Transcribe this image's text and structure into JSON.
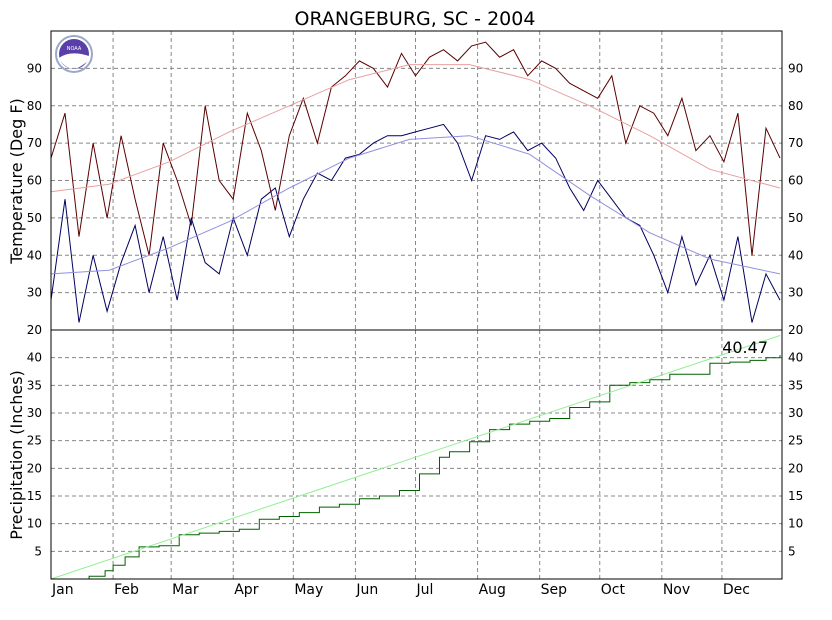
{
  "chart_data": [
    {
      "type": "line",
      "title": "ORANGEBURG, SC - 2004",
      "ylabel": "Temperature (Deg F)",
      "ylim": [
        20,
        100
      ],
      "yticks": [
        20,
        30,
        40,
        50,
        60,
        70,
        80,
        90
      ],
      "grid": true,
      "x_months": [
        "Jan",
        "Feb",
        "Mar",
        "Apr",
        "May",
        "Jun",
        "Jul",
        "Aug",
        "Sep",
        "Oct",
        "Nov",
        "Dec"
      ],
      "series": [
        {
          "role": "daily-max",
          "color": "#5a0000",
          "x_day": [
            1,
            8,
            15,
            22,
            29,
            36,
            43,
            50,
            57,
            64,
            71,
            78,
            85,
            92,
            99,
            106,
            113,
            120,
            127,
            134,
            141,
            148,
            155,
            162,
            169,
            176,
            183,
            190,
            197,
            204,
            211,
            218,
            225,
            232,
            239,
            246,
            253,
            260,
            267,
            274,
            281,
            288,
            295,
            302,
            309,
            316,
            323,
            330,
            337,
            344,
            351,
            358,
            365
          ],
          "values": [
            66,
            78,
            45,
            70,
            50,
            72,
            55,
            40,
            70,
            60,
            48,
            80,
            60,
            55,
            78,
            68,
            52,
            72,
            82,
            70,
            85,
            88,
            92,
            90,
            85,
            94,
            88,
            93,
            95,
            92,
            96,
            97,
            93,
            95,
            88,
            92,
            90,
            86,
            84,
            82,
            88,
            70,
            80,
            78,
            72,
            82,
            68,
            72,
            65,
            78,
            40,
            74,
            66
          ]
        },
        {
          "role": "normal-max",
          "color": "#e8a0a0",
          "x_day": [
            1,
            30,
            60,
            90,
            120,
            150,
            180,
            210,
            240,
            270,
            300,
            330,
            365
          ],
          "values": [
            57,
            59,
            65,
            73,
            80,
            87,
            91,
            91,
            87,
            80,
            72,
            63,
            58
          ]
        },
        {
          "role": "daily-min",
          "color": "#000060",
          "x_day": [
            1,
            8,
            15,
            22,
            29,
            36,
            43,
            50,
            57,
            64,
            71,
            78,
            85,
            92,
            99,
            106,
            113,
            120,
            127,
            134,
            141,
            148,
            155,
            162,
            169,
            176,
            183,
            190,
            197,
            204,
            211,
            218,
            225,
            232,
            239,
            246,
            253,
            260,
            267,
            274,
            281,
            288,
            295,
            302,
            309,
            316,
            323,
            330,
            337,
            344,
            351,
            358,
            365
          ],
          "values": [
            28,
            55,
            22,
            40,
            25,
            38,
            48,
            30,
            45,
            28,
            50,
            38,
            35,
            50,
            40,
            55,
            58,
            45,
            55,
            62,
            60,
            66,
            67,
            70,
            72,
            72,
            73,
            74,
            75,
            70,
            60,
            72,
            71,
            73,
            68,
            70,
            66,
            58,
            52,
            60,
            55,
            50,
            48,
            40,
            30,
            45,
            32,
            40,
            28,
            45,
            22,
            35,
            28
          ]
        },
        {
          "role": "normal-min",
          "color": "#9090e0",
          "x_day": [
            1,
            30,
            60,
            90,
            120,
            150,
            180,
            210,
            240,
            270,
            300,
            330,
            365
          ],
          "values": [
            35,
            36,
            42,
            49,
            58,
            66,
            71,
            72,
            67,
            56,
            46,
            39,
            35
          ]
        }
      ]
    },
    {
      "type": "line",
      "ylabel": "Precipitation (Inches)",
      "ylim": [
        0,
        45
      ],
      "yticks": [
        5,
        10,
        15,
        20,
        25,
        30,
        35,
        40
      ],
      "grid": true,
      "x_months": [
        "Jan",
        "Feb",
        "Mar",
        "Apr",
        "May",
        "Jun",
        "Jul",
        "Aug",
        "Sep",
        "Oct",
        "Nov",
        "Dec"
      ],
      "annotation": "40.47",
      "series": [
        {
          "role": "cumulative-observed",
          "color": "#006000",
          "x_day": [
            1,
            20,
            28,
            32,
            38,
            45,
            55,
            65,
            75,
            85,
            95,
            105,
            115,
            125,
            135,
            145,
            155,
            165,
            175,
            185,
            195,
            200,
            210,
            220,
            230,
            240,
            250,
            260,
            270,
            280,
            290,
            300,
            310,
            320,
            330,
            340,
            350,
            358,
            365
          ],
          "values": [
            0,
            0.5,
            1.5,
            2.5,
            4,
            5.8,
            6,
            8,
            8.3,
            8.6,
            9,
            10.8,
            11.3,
            12,
            13,
            13.5,
            14.5,
            15,
            16,
            19,
            22,
            23,
            24.8,
            27,
            28,
            28.5,
            29,
            31,
            32,
            35,
            35.5,
            36,
            37,
            37,
            39,
            39.2,
            39.5,
            40,
            40.47
          ]
        },
        {
          "role": "cumulative-normal",
          "color": "#90f090",
          "x_day": [
            1,
            365
          ],
          "values": [
            0,
            44
          ]
        }
      ]
    }
  ]
}
